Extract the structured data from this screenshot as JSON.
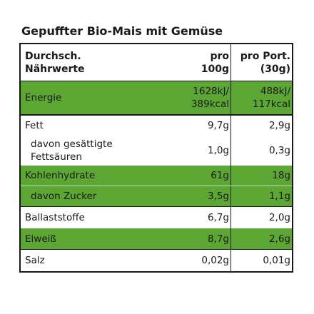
{
  "title": "Gepuffter Bio-Mais mit Gemüse",
  "header": {
    "label_line1": "Durchsch.",
    "label_line2": "Nährwerte",
    "col1_line1": "pro",
    "col1_line2": "100g",
    "col2_line1": "pro Port.",
    "col2_line2": "(30g)"
  },
  "rows": [
    {
      "label": "Energie",
      "v1_line1": "1628kJ/",
      "v1_line2": "389kcal",
      "v2_line1": "488kJ/",
      "v2_line2": "117kcal"
    },
    {
      "label": "Fett",
      "v1": "9,7g",
      "v2": "2,9g"
    },
    {
      "label_line1": "davon gesättigte",
      "label_line2": "Fettsäuren",
      "v1": "1,0g",
      "v2": "0,3g"
    },
    {
      "label": "Kohlenhydrate",
      "v1": "61g",
      "v2": "18g"
    },
    {
      "label": "davon Zucker",
      "v1": "3,5g",
      "v2": "1,1g"
    },
    {
      "label": "Ballaststoffe",
      "v1": "6,7g",
      "v2": "2,0g"
    },
    {
      "label": "Eiweiß",
      "v1": "8,7g",
      "v2": "2,6g"
    },
    {
      "label": "Salz",
      "v1": "0,02g",
      "v2": "0,01g"
    }
  ],
  "colors": {
    "highlight": "#5ca634",
    "border": "#1a1a1a",
    "text": "#1a1a1a"
  }
}
